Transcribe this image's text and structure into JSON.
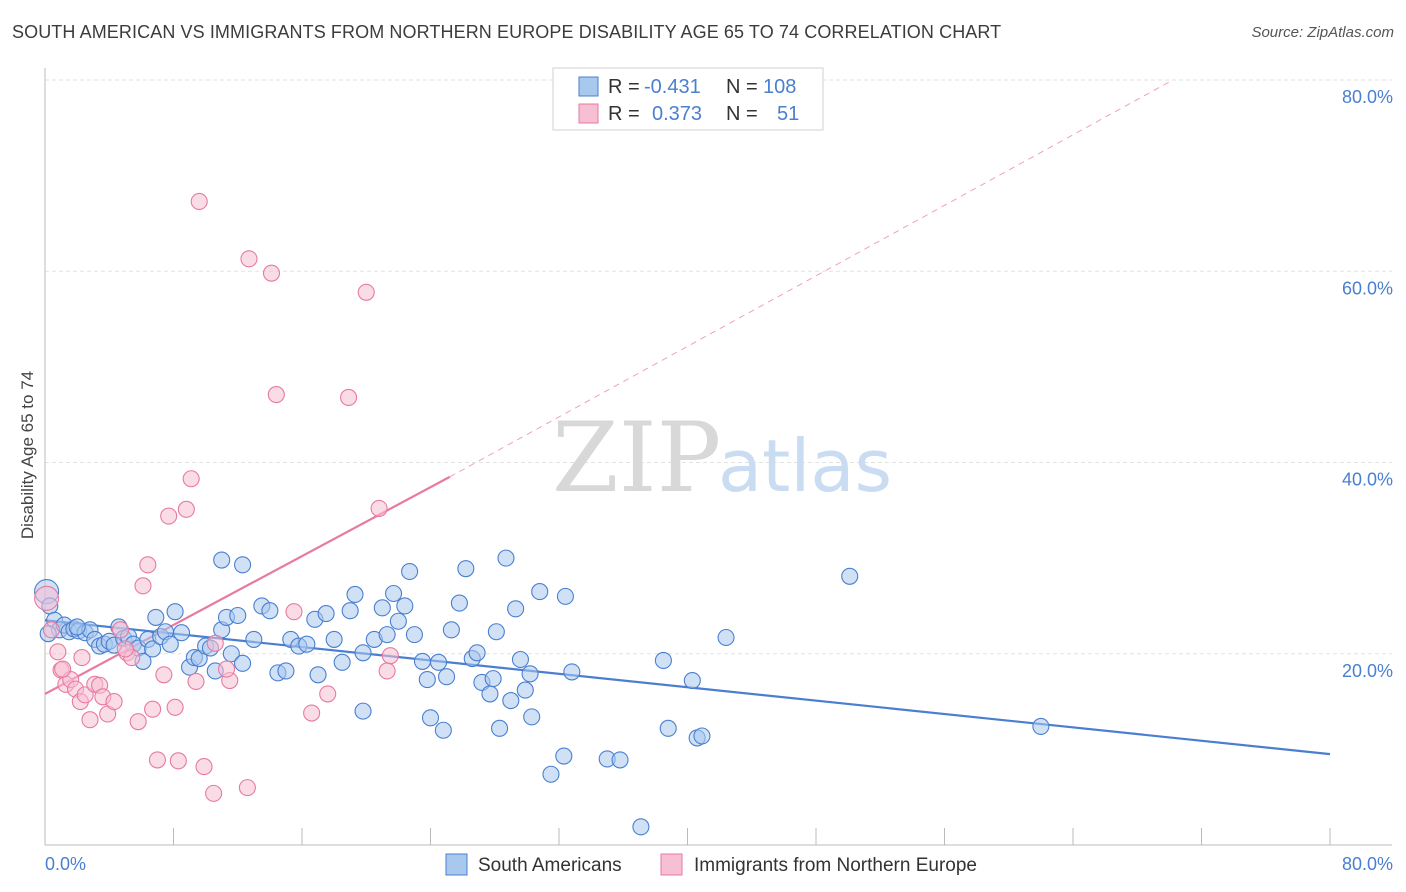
{
  "title": "SOUTH AMERICAN VS IMMIGRANTS FROM NORTHERN EUROPE DISABILITY AGE 65 TO 74 CORRELATION CHART",
  "source": "Source: ZipAtlas.com",
  "watermark": {
    "zip": "ZIP",
    "atlas": "atlas"
  },
  "legend_box": {
    "rows": [
      {
        "r_label": "R =",
        "r_value": "-0.431",
        "n_label": "N =",
        "n_value": "108",
        "color": "#4a7fd0"
      },
      {
        "r_label": "R =",
        "r_value": "0.373",
        "n_label": "N =",
        "n_value": "51",
        "color": "#e87aa0"
      }
    ]
  },
  "chart_data": {
    "type": "scatter",
    "title": "SOUTH AMERICAN VS IMMIGRANTS FROM NORTHERN EUROPE DISABILITY AGE 65 TO 74 CORRELATION CHART",
    "xlabel": "",
    "ylabel": "Disability Age 65 to 74",
    "xlim": [
      0,
      80
    ],
    "ylim": [
      0,
      80
    ],
    "x_ticks": [
      "0.0%",
      "80.0%"
    ],
    "y_ticks": [
      "20.0%",
      "40.0%",
      "60.0%",
      "80.0%"
    ],
    "y_tick_values": [
      20,
      40,
      60,
      80
    ],
    "grid": true,
    "legend_position": "bottom",
    "series": [
      {
        "name": "South Americans",
        "color": "#4a7fd0",
        "fill": "#a9c8ee",
        "trend": {
          "x": [
            0,
            80
          ],
          "y": [
            23.5,
            9.5
          ],
          "style": "solid"
        },
        "points": [
          [
            0.1,
            26.5
          ],
          [
            0.3,
            25
          ],
          [
            0.6,
            23.5
          ],
          [
            0.9,
            22.5
          ],
          [
            1.2,
            23
          ],
          [
            1.5,
            22.3
          ],
          [
            1.8,
            22.6
          ],
          [
            2.1,
            22.4
          ],
          [
            2.5,
            22.2
          ],
          [
            2.8,
            22.5
          ],
          [
            3.1,
            21.5
          ],
          [
            3.4,
            20.8
          ],
          [
            3.7,
            21
          ],
          [
            4,
            21.3
          ],
          [
            4.3,
            20.9
          ],
          [
            4.6,
            22.8
          ],
          [
            4.9,
            21.6
          ],
          [
            5.2,
            21.8
          ],
          [
            5.5,
            21
          ],
          [
            5.8,
            20.6
          ],
          [
            6.1,
            19.2
          ],
          [
            6.4,
            21.5
          ],
          [
            6.7,
            20.5
          ],
          [
            6.9,
            23.8
          ],
          [
            7.2,
            21.8
          ],
          [
            7.5,
            22.3
          ],
          [
            7.8,
            21
          ],
          [
            8.1,
            24.4
          ],
          [
            8.5,
            22.2
          ],
          [
            9,
            18.6
          ],
          [
            9.3,
            19.6
          ],
          [
            9.6,
            19.5
          ],
          [
            10,
            20.8
          ],
          [
            10.3,
            20.6
          ],
          [
            10.6,
            18.2
          ],
          [
            11,
            22.5
          ],
          [
            11.3,
            23.8
          ],
          [
            11.6,
            20
          ],
          [
            12,
            24
          ],
          [
            12.3,
            19
          ],
          [
            11,
            29.8
          ],
          [
            12.3,
            29.3
          ],
          [
            13,
            21.5
          ],
          [
            13.5,
            25
          ],
          [
            14,
            24.5
          ],
          [
            14.5,
            18
          ],
          [
            15,
            18.2
          ],
          [
            15.3,
            21.5
          ],
          [
            15.8,
            20.8
          ],
          [
            16.3,
            21
          ],
          [
            16.8,
            23.6
          ],
          [
            17,
            17.8
          ],
          [
            17.5,
            24.2
          ],
          [
            18,
            21.5
          ],
          [
            18.5,
            19.1
          ],
          [
            19,
            24.5
          ],
          [
            19.3,
            26.2
          ],
          [
            19.8,
            20.1
          ],
          [
            20.5,
            21.5
          ],
          [
            21,
            24.8
          ],
          [
            21.3,
            22
          ],
          [
            21.7,
            26.3
          ],
          [
            22,
            23.4
          ],
          [
            22.4,
            25
          ],
          [
            22.7,
            28.6
          ],
          [
            23,
            22
          ],
          [
            23.5,
            19.2
          ],
          [
            23.8,
            17.3
          ],
          [
            24,
            13.3
          ],
          [
            24.5,
            19.1
          ],
          [
            24.8,
            12
          ],
          [
            25,
            17.6
          ],
          [
            25.3,
            22.5
          ],
          [
            25.8,
            25.3
          ],
          [
            26.2,
            28.9
          ],
          [
            26.6,
            19.5
          ],
          [
            26.9,
            20.1
          ],
          [
            27.2,
            17
          ],
          [
            27.7,
            15.8
          ],
          [
            27.9,
            17.4
          ],
          [
            28.1,
            22.3
          ],
          [
            28.3,
            12.2
          ],
          [
            28.7,
            30
          ],
          [
            29,
            15.1
          ],
          [
            29.3,
            24.7
          ],
          [
            29.6,
            19.4
          ],
          [
            29.9,
            16.2
          ],
          [
            30.2,
            17.9
          ],
          [
            30.3,
            13.4
          ],
          [
            30.8,
            26.5
          ],
          [
            31.5,
            7.4
          ],
          [
            32.3,
            9.3
          ],
          [
            32.8,
            18.1
          ],
          [
            32.4,
            26
          ],
          [
            35,
            9
          ],
          [
            35.8,
            8.9
          ],
          [
            38.5,
            19.3
          ],
          [
            38.8,
            12.2
          ],
          [
            40.3,
            17.2
          ],
          [
            40.6,
            11.2
          ],
          [
            40.9,
            11.4
          ],
          [
            42.4,
            21.7
          ],
          [
            37.1,
            1.9
          ],
          [
            50.1,
            28.1
          ],
          [
            62,
            12.4
          ],
          [
            0.2,
            22.1
          ],
          [
            2,
            22.8
          ],
          [
            19.8,
            14
          ]
        ]
      },
      {
        "name": "Immigrants from Northern Europe",
        "color": "#e87aa0",
        "fill": "#f6bfd3",
        "trend": {
          "x": [
            0,
            25.2
          ],
          "y": [
            15.8,
            38.5
          ],
          "style": "solid",
          "extended_to": [
            70,
            79.8
          ],
          "extended_style": "dashed"
        },
        "points": [
          [
            0.1,
            25.8
          ],
          [
            0.4,
            22.5
          ],
          [
            0.8,
            20.2
          ],
          [
            1,
            18.3
          ],
          [
            1.3,
            16.8
          ],
          [
            1.6,
            17.3
          ],
          [
            1.9,
            16.3
          ],
          [
            2.2,
            15
          ],
          [
            2.5,
            15.7
          ],
          [
            2.8,
            13.1
          ],
          [
            3.1,
            16.8
          ],
          [
            3.4,
            16.7
          ],
          [
            3.6,
            15.5
          ],
          [
            3.9,
            13.7
          ],
          [
            4.3,
            15
          ],
          [
            4.7,
            22.5
          ],
          [
            5.1,
            20.1
          ],
          [
            5.4,
            19.6
          ],
          [
            5.8,
            12.9
          ],
          [
            6.1,
            27.1
          ],
          [
            6.4,
            29.3
          ],
          [
            6.7,
            14.2
          ],
          [
            7,
            8.9
          ],
          [
            7.4,
            17.8
          ],
          [
            7.7,
            34.4
          ],
          [
            8.1,
            14.4
          ],
          [
            8.3,
            8.8
          ],
          [
            8.8,
            35.1
          ],
          [
            9.1,
            38.3
          ],
          [
            9.4,
            17.1
          ],
          [
            9.6,
            67.3
          ],
          [
            9.9,
            8.2
          ],
          [
            10.5,
            5.4
          ],
          [
            10.6,
            21.1
          ],
          [
            11.5,
            17.2
          ],
          [
            12.6,
            6.0
          ],
          [
            12.7,
            61.3
          ],
          [
            14.1,
            59.8
          ],
          [
            14.4,
            47.1
          ],
          [
            15.5,
            24.4
          ],
          [
            16.6,
            13.8
          ],
          [
            17.6,
            15.8
          ],
          [
            18.9,
            46.8
          ],
          [
            20,
            57.8
          ],
          [
            20.8,
            35.2
          ],
          [
            21.3,
            18.2
          ],
          [
            21.5,
            19.8
          ],
          [
            1.1,
            18.4
          ],
          [
            5,
            20.5
          ],
          [
            11.3,
            18.4
          ],
          [
            2.3,
            19.6
          ]
        ]
      }
    ]
  }
}
